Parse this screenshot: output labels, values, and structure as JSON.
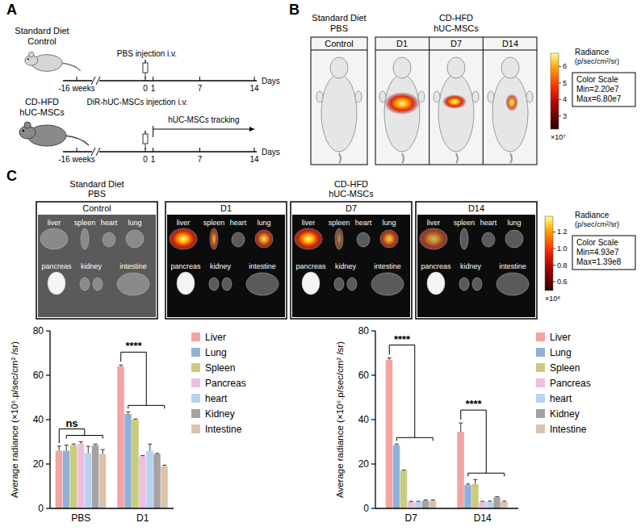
{
  "panel_a": {
    "letter": "A",
    "rows": [
      {
        "diet": "Standard Diet",
        "group": "Control",
        "injection": "PBS injection i.v."
      },
      {
        "diet": "CD-HFD",
        "group": "hUC-MSCs",
        "injection": "DiR-hUC-MSCs injection i.v.",
        "tracking": "hUC-MSCs tracking"
      }
    ],
    "timeline_ticks": [
      {
        "value": -16,
        "label": "-16 weeks"
      },
      0,
      1,
      7,
      14
    ],
    "timeline_unit": "Days"
  },
  "panel_b": {
    "letter": "B",
    "control_header": [
      "Standard Diet",
      "PBS"
    ],
    "treated_header": [
      "CD-HFD",
      "hUC-MSCs"
    ],
    "images": [
      "Control",
      "D1",
      "D7",
      "D14"
    ],
    "color_bar": {
      "title": "Radiance",
      "unit": "(p/sec/cm²/sr)",
      "box_title": "Color Scale",
      "min": {
        "value": 22000000,
        "label": "Min=2.20e7"
      },
      "max": {
        "value": 68000000,
        "label": "Max=6.80e7"
      },
      "ticks": [
        {
          "value": 30000000,
          "label": "3"
        },
        {
          "value": 40000000,
          "label": "4"
        },
        {
          "value": 50000000,
          "label": "5"
        },
        {
          "value": 60000000,
          "label": "6"
        }
      ],
      "multiplier": "×10⁷"
    }
  },
  "panel_c": {
    "letter": "C",
    "control_header": [
      "Standard Diet",
      "PBS"
    ],
    "treated_header": [
      "CD-HFD",
      "hUC-MSCs"
    ],
    "images": [
      "Control",
      "D1",
      "D7",
      "D14"
    ],
    "organs": [
      "liver",
      "spleen",
      "heart",
      "lung",
      "pancreas",
      "kidney",
      "intestine"
    ],
    "color_bar": {
      "title": "Radiance",
      "unit": "(p/sec/cm²/sr)",
      "box_title": "Color Scale",
      "min": {
        "value": 49300000,
        "label": "Min=4.93e7"
      },
      "max": {
        "value": 139000000,
        "label": "Max=1.39e8"
      },
      "ticks": [
        {
          "value": 60000000,
          "label": "0.6"
        },
        {
          "value": 80000000,
          "label": "0.8"
        },
        {
          "value": 100000000,
          "label": "1.0"
        },
        {
          "value": 120000000,
          "label": "1.2"
        }
      ],
      "multiplier": "×10⁸"
    }
  },
  "chart_data": [
    {
      "type": "bar",
      "y_label": "Average radiance (×10⁶.p/sec/cm² /sr)",
      "categories": [
        "PBS",
        "D1"
      ],
      "ylim": [
        0,
        80
      ],
      "yticks": [
        0,
        20,
        40,
        60,
        80
      ],
      "grid": false,
      "legend": "right",
      "series": [
        {
          "name": "Liver",
          "color": "#f4a3a3",
          "values": [
            26,
            64
          ],
          "errors": [
            2,
            0.6
          ]
        },
        {
          "name": "Lung",
          "color": "#8fb0d8",
          "values": [
            26,
            42.5
          ],
          "errors": [
            2.5,
            1
          ]
        },
        {
          "name": "Spleen",
          "color": "#c9cc7e",
          "values": [
            28.5,
            40
          ],
          "errors": [
            0.5,
            0.3
          ]
        },
        {
          "name": "Pancreas",
          "color": "#f0bce0",
          "values": [
            29,
            23.5
          ],
          "errors": [
            1,
            0.3
          ]
        },
        {
          "name": "heart",
          "color": "#b9d2f2",
          "values": [
            25,
            26
          ],
          "errors": [
            3,
            3
          ]
        },
        {
          "name": "Kidney",
          "color": "#a3a3a3",
          "values": [
            28.5,
            24.5
          ],
          "errors": [
            0.5,
            0.3
          ]
        },
        {
          "name": "Intestine",
          "color": "#dcc2aa",
          "values": [
            24.5,
            19
          ],
          "errors": [
            2,
            0.5
          ]
        }
      ],
      "annotations": [
        {
          "text": "ns",
          "category": 0
        },
        {
          "text": "****",
          "category": 1
        }
      ]
    },
    {
      "type": "bar",
      "y_label": "Average radiance (×10⁶.p/sec/cm² /sr)",
      "categories": [
        "D7",
        "D14"
      ],
      "ylim": [
        0,
        80
      ],
      "yticks": [
        0,
        20,
        40,
        60,
        80
      ],
      "grid": false,
      "legend": "right",
      "series": [
        {
          "name": "Liver",
          "color": "#f4a3a3",
          "values": [
            67,
            34.5
          ],
          "errors": [
            0.8,
            4
          ]
        },
        {
          "name": "Lung",
          "color": "#8fb0d8",
          "values": [
            28.5,
            10.5
          ],
          "errors": [
            0.5,
            0.5
          ]
        },
        {
          "name": "Spleen",
          "color": "#c9cc7e",
          "values": [
            17,
            11
          ],
          "errors": [
            0.3,
            2
          ]
        },
        {
          "name": "Pancreas",
          "color": "#f0bce0",
          "values": [
            3,
            3
          ],
          "errors": [
            0.2,
            0.2
          ]
        },
        {
          "name": "heart",
          "color": "#b9d2f2",
          "values": [
            3,
            3
          ],
          "errors": [
            0.2,
            0.3
          ]
        },
        {
          "name": "Kidney",
          "color": "#a3a3a3",
          "values": [
            3.5,
            5
          ],
          "errors": [
            0.3,
            0.3
          ]
        },
        {
          "name": "Intestine",
          "color": "#dcc2aa",
          "values": [
            3.5,
            3
          ],
          "errors": [
            0.3,
            0.3
          ]
        }
      ],
      "annotations": [
        {
          "text": "****",
          "category": 0
        },
        {
          "text": "****",
          "category": 1
        }
      ]
    }
  ]
}
